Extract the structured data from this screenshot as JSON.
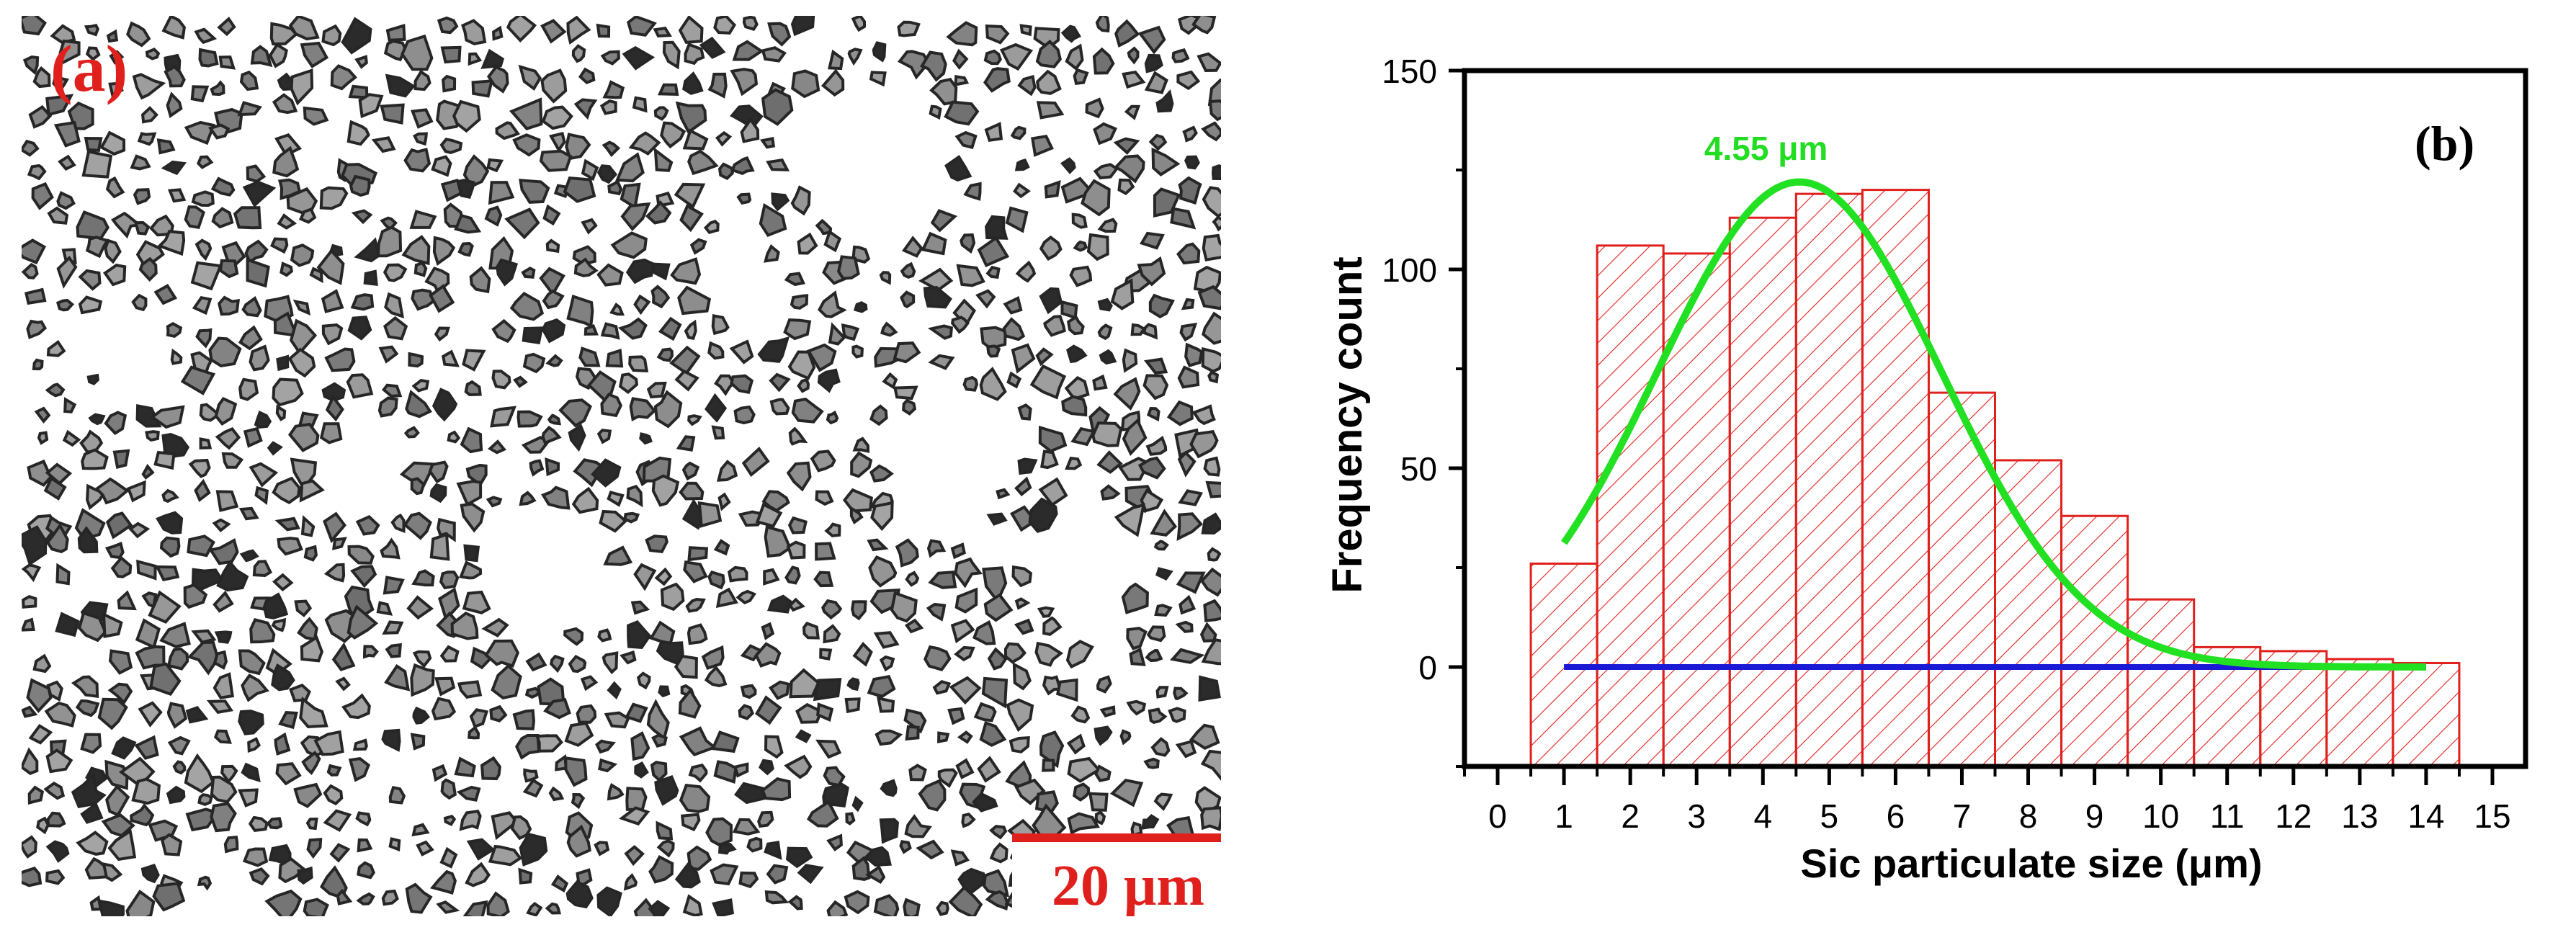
{
  "panel_a": {
    "label": "(a)",
    "scale_bar": "20 μm",
    "colors": {
      "label": "#e0201c",
      "particle_dark": "#2a2a2a",
      "particle_fill": "#8c8c8c",
      "matrix": "#ffffff"
    }
  },
  "chart_data": {
    "type": "bar",
    "panel_label": "(b)",
    "xlabel": "Sic particulate size  (μm)",
    "ylabel": "Frequency count",
    "xlim": [
      -0.5,
      15.5
    ],
    "ylim": [
      -25,
      150
    ],
    "xticks": [
      "0",
      "1",
      "2",
      "3",
      "4",
      "5",
      "6",
      "7",
      "8",
      "9",
      "10",
      "11",
      "12",
      "13",
      "14",
      "15"
    ],
    "yticks": [
      "0",
      "50",
      "100",
      "150"
    ],
    "categories": [
      1,
      2,
      3,
      4,
      5,
      6,
      7,
      8,
      9,
      10,
      11,
      12,
      13,
      14
    ],
    "values": [
      26,
      106,
      104,
      113,
      119,
      120,
      69,
      52,
      38,
      17,
      5,
      4,
      2,
      1
    ],
    "fit_curve": {
      "type": "gaussian",
      "peak_x": 4.55,
      "peak_y": 122,
      "sigma": 2.15,
      "x_range": [
        1,
        14
      ]
    },
    "baseline": {
      "y": 0,
      "x_range": [
        1,
        14
      ]
    },
    "annotation": "4.55 μm",
    "colors": {
      "bar_edge": "#e0201c",
      "hatch": "#e0201c",
      "fit": "#22e022",
      "baseline": "#1a1ad6",
      "annotation": "#22dd22"
    }
  }
}
